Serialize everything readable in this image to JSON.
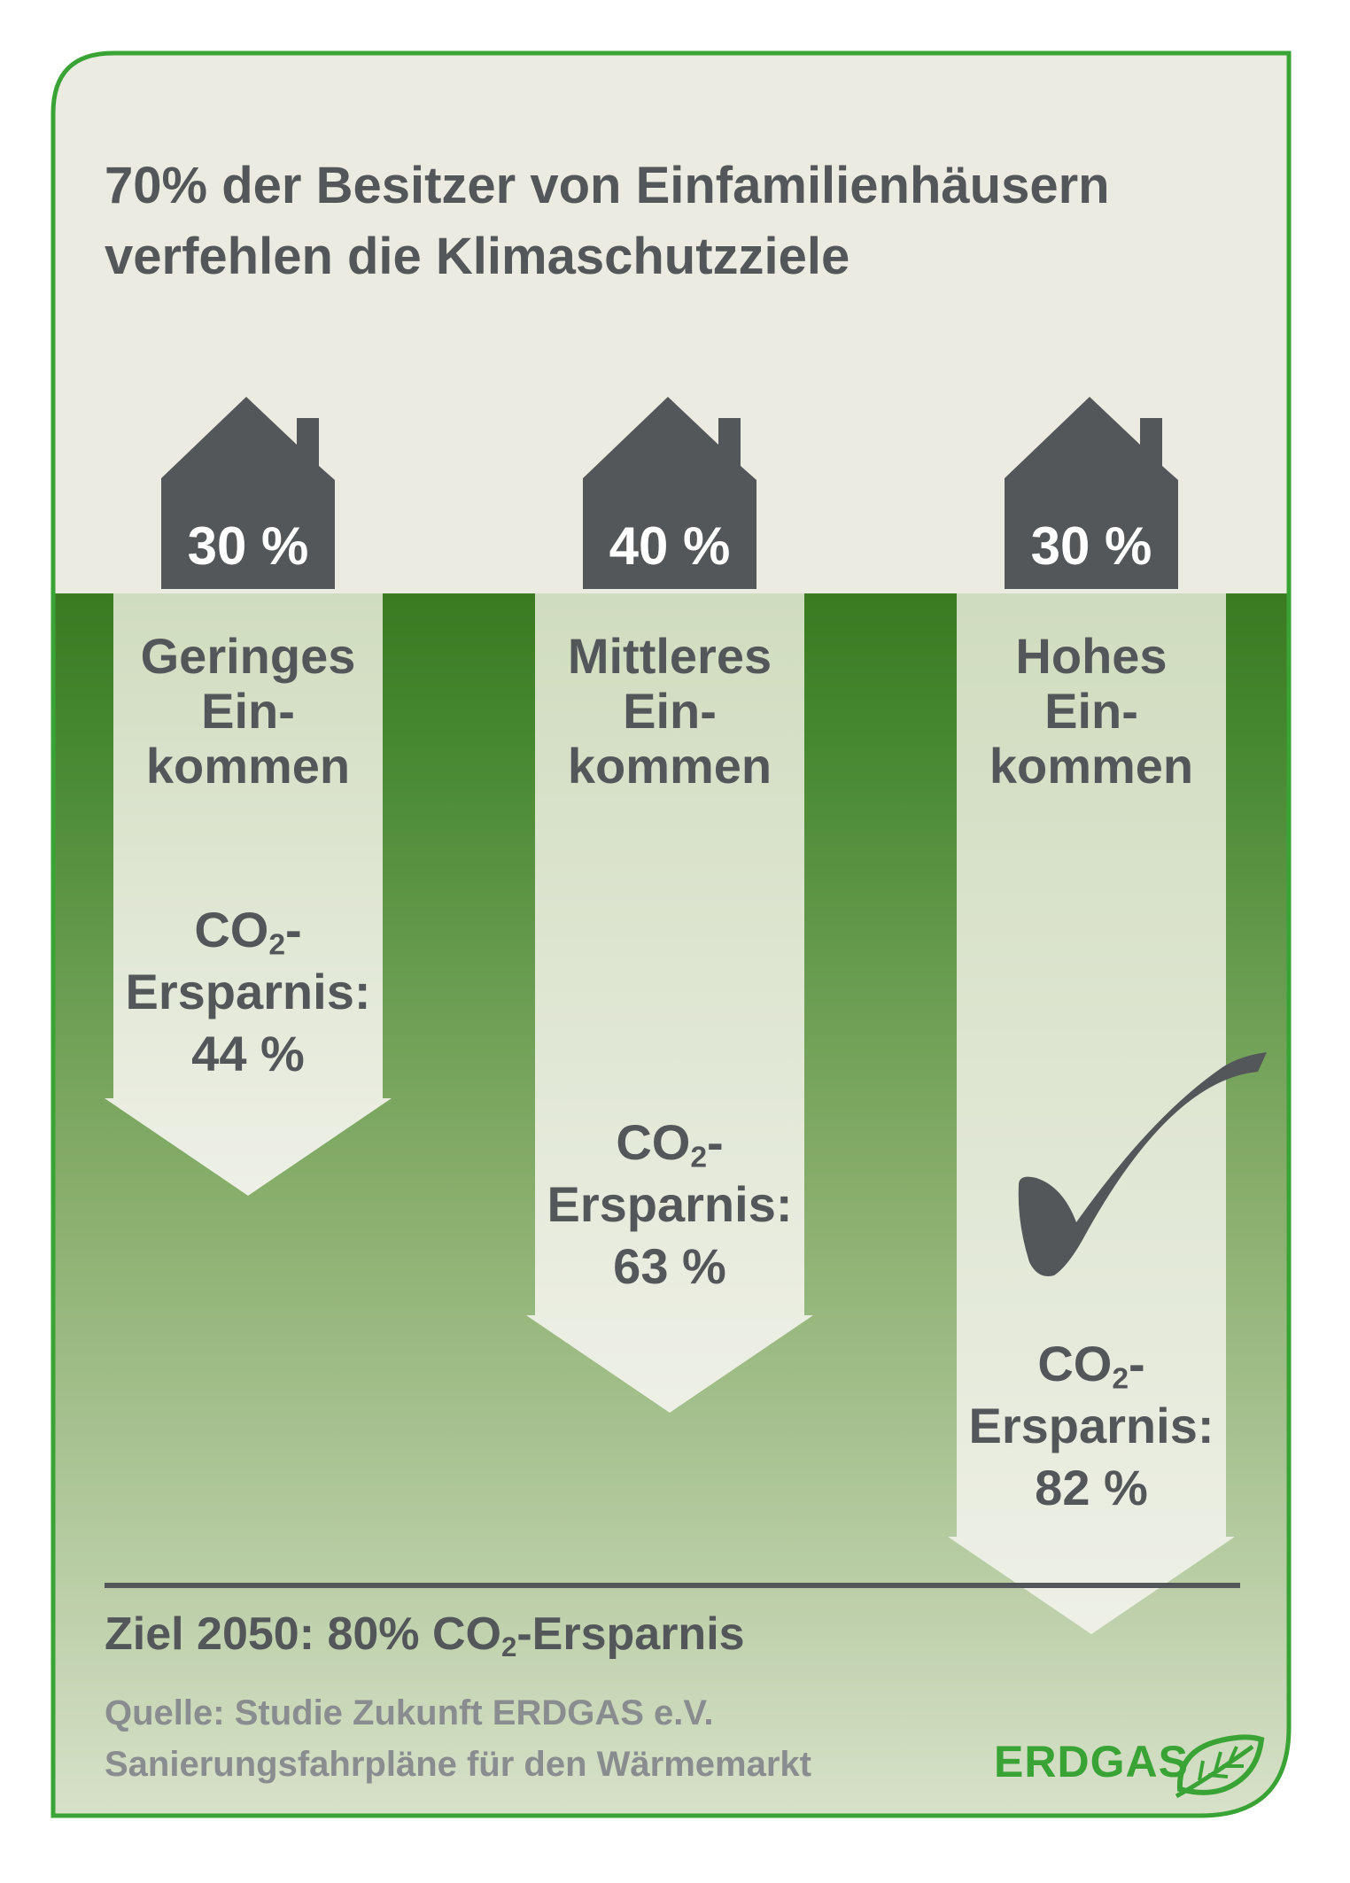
{
  "title": {
    "line1": "70% der Besitzer von Einfamilienhäusern",
    "line2": "verfehlen die Klimaschutzziele"
  },
  "groups": [
    {
      "share": "30 %",
      "income": [
        "Geringes",
        "Ein-",
        "kommen"
      ],
      "co2_prefix": "CO",
      "co2_sub": "2",
      "co2_suffix": "-",
      "savings_label": "Ersparnis:",
      "savings": "44 %",
      "savings_value": 44
    },
    {
      "share": "40 %",
      "income": [
        "Mittleres",
        "Ein-",
        "kommen"
      ],
      "co2_prefix": "CO",
      "co2_sub": "2",
      "co2_suffix": "-",
      "savings_label": "Ersparnis:",
      "savings": "63 %",
      "savings_value": 63
    },
    {
      "share": "30 %",
      "income": [
        "Hohes",
        "Ein-",
        "kommen"
      ],
      "co2_prefix": "CO",
      "co2_sub": "2",
      "co2_suffix": "-",
      "savings_label": "Ersparnis:",
      "savings": "82 %",
      "savings_value": 82
    }
  ],
  "goal": {
    "prefix": "Ziel 2050: 80% CO",
    "sub": "2",
    "suffix": "-Ersparnis",
    "value": 80
  },
  "source": {
    "line1": "Quelle: Studie Zukunft ERDGAS e.V.",
    "line2": "Sanierungsfahrpläne für den Wärmemarkt"
  },
  "logo": {
    "text": "ERDGAS",
    "icon": "leaf-icon"
  },
  "colors": {
    "border": "#3aa335",
    "beige": "#ecebe1",
    "green_dark": "#3a7a21",
    "house": "#54575a",
    "text": "#54575a",
    "logo": "#3aa335"
  }
}
